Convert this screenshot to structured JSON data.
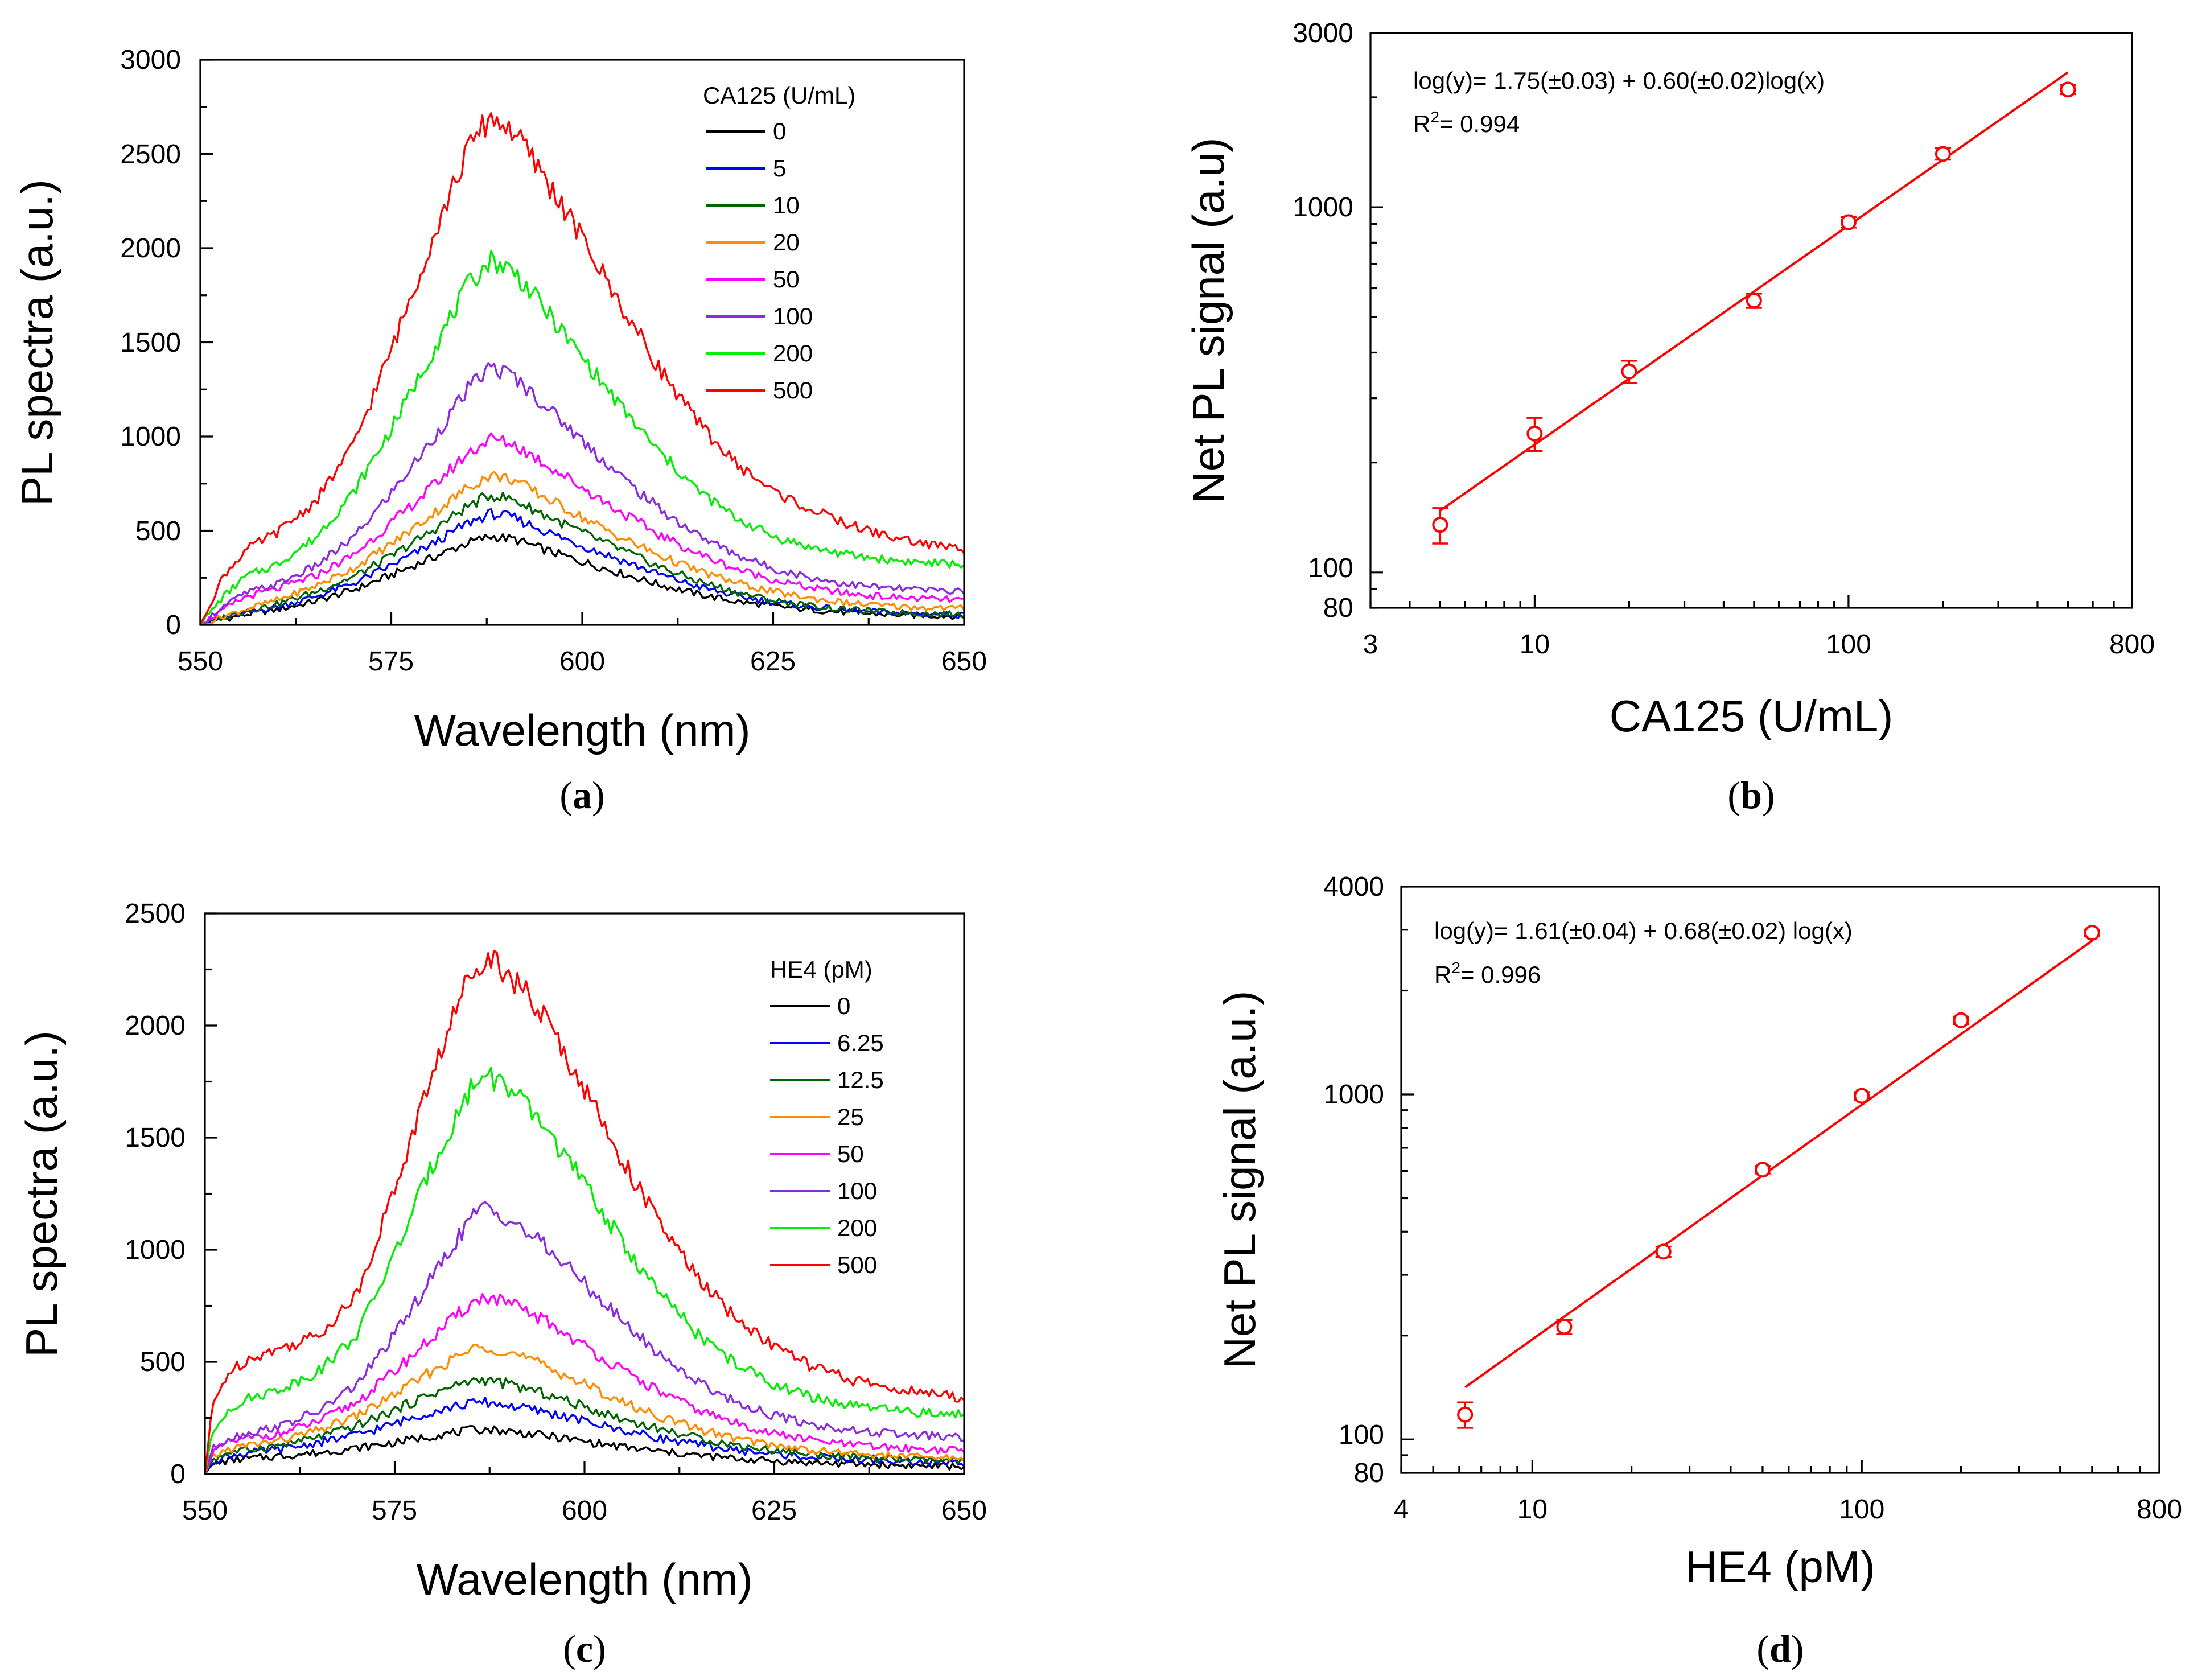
{
  "chart_data": [
    {
      "id": "a",
      "panel_label": "a",
      "type": "line",
      "xlabel": "Wavelength (nm)",
      "ylabel": "PL spectra (a.u.)",
      "xlim": [
        550,
        650
      ],
      "ylim": [
        0,
        3000
      ],
      "xticks": [
        "550",
        "575",
        "600",
        "625",
        "650"
      ],
      "yticks": [
        "0",
        "500",
        "1000",
        "1500",
        "2000",
        "2500",
        "3000"
      ],
      "legend_title": "CA125 (U/mL)",
      "x": [
        550,
        553,
        556,
        560,
        565,
        570,
        575,
        580,
        585,
        588,
        591,
        595,
        600,
        605,
        610,
        615,
        620,
        625,
        630,
        635,
        640,
        645,
        650
      ],
      "series": [
        {
          "name": "0",
          "color": "#000000",
          "values": [
            0,
            30,
            55,
            80,
            125,
            185,
            265,
            350,
            435,
            470,
            455,
            400,
            335,
            275,
            215,
            165,
            125,
            100,
            80,
            65,
            55,
            50,
            45
          ]
        },
        {
          "name": "5",
          "color": "#0000ff",
          "values": [
            0,
            35,
            65,
            95,
            150,
            220,
            315,
            420,
            540,
            590,
            570,
            500,
            420,
            345,
            270,
            205,
            155,
            120,
            95,
            75,
            65,
            58,
            52
          ]
        },
        {
          "name": "10",
          "color": "#006400",
          "values": [
            0,
            40,
            75,
            110,
            175,
            255,
            365,
            490,
            630,
            690,
            665,
            585,
            490,
            400,
            310,
            235,
            175,
            130,
            100,
            80,
            68,
            60,
            55
          ]
        },
        {
          "name": "20",
          "color": "#ff8c00",
          "values": [
            0,
            45,
            85,
            130,
            205,
            300,
            430,
            575,
            730,
            795,
            770,
            680,
            570,
            465,
            370,
            290,
            225,
            175,
            140,
            115,
            100,
            92,
            88
          ]
        },
        {
          "name": "50",
          "color": "#ff00ff",
          "values": [
            0,
            80,
            150,
            190,
            260,
            370,
            540,
            720,
            910,
            990,
            960,
            860,
            730,
            600,
            480,
            380,
            300,
            240,
            195,
            165,
            148,
            138,
            132
          ]
        },
        {
          "name": "100",
          "color": "#8a2be2",
          "values": [
            0,
            100,
            170,
            215,
            310,
            460,
            700,
            960,
            1250,
            1370,
            1320,
            1170,
            980,
            790,
            620,
            480,
            375,
            300,
            250,
            215,
            195,
            185,
            180
          ]
        },
        {
          "name": "200",
          "color": "#00ee00",
          "values": [
            0,
            150,
            260,
            320,
            460,
            700,
            1040,
            1420,
            1800,
            1940,
            1880,
            1680,
            1420,
            1160,
            920,
            720,
            570,
            470,
            410,
            370,
            345,
            330,
            320
          ]
        },
        {
          "name": "500",
          "color": "#ff0000",
          "values": [
            0,
            260,
            400,
            490,
            650,
            950,
            1460,
            2010,
            2520,
            2700,
            2620,
            2380,
            2050,
            1700,
            1370,
            1080,
            860,
            710,
            610,
            530,
            470,
            430,
            400
          ]
        }
      ]
    },
    {
      "id": "b",
      "panel_label": "b",
      "type": "scatter",
      "xlabel": "CA125 (U/mL)",
      "ylabel": "Net PL signal (a.u)",
      "xscale": "log",
      "yscale": "log",
      "xlim": [
        3,
        800
      ],
      "ylim": [
        80,
        3000
      ],
      "xticks": [
        3,
        10,
        100,
        800
      ],
      "yticks": [
        80,
        100,
        1000,
        3000
      ],
      "xtick_labels": [
        "3",
        "10",
        "100",
        "800"
      ],
      "ytick_labels": [
        "80",
        "100",
        "1000",
        "3000"
      ],
      "equation": "log(y)= 1.75(±0.03) + 0.60(±0.02)log(x)",
      "r2_prefix": "R",
      "r2_sup": "2",
      "r2_value": "= 0.994",
      "color": "#ff0000",
      "fit": {
        "intercept": 1.75,
        "slope": 0.6,
        "x_from": 5,
        "x_to": 500
      },
      "points": [
        {
          "x": 5,
          "y": 135,
          "err": 15
        },
        {
          "x": 10,
          "y": 240,
          "err": 25
        },
        {
          "x": 20,
          "y": 355,
          "err": 25
        },
        {
          "x": 50,
          "y": 555,
          "err": 25
        },
        {
          "x": 100,
          "y": 910,
          "err": 30
        },
        {
          "x": 200,
          "y": 1400,
          "err": 50
        },
        {
          "x": 500,
          "y": 2100,
          "err": 60
        }
      ]
    },
    {
      "id": "c",
      "panel_label": "c",
      "type": "line",
      "xlabel": "Wavelength (nm)",
      "ylabel": "PL spectra (a.u.)",
      "xlim": [
        550,
        650
      ],
      "ylim": [
        0,
        2500
      ],
      "xticks": [
        "550",
        "575",
        "600",
        "625",
        "650"
      ],
      "yticks": [
        "0",
        "500",
        "1000",
        "1500",
        "2000",
        "2500"
      ],
      "legend_title": "HE4 (pM)",
      "x": [
        550,
        551,
        553,
        556,
        560,
        565,
        570,
        575,
        580,
        585,
        587,
        590,
        595,
        600,
        605,
        610,
        615,
        620,
        625,
        630,
        635,
        640,
        645,
        650
      ],
      "series": [
        {
          "name": "0",
          "color": "#000000",
          "values": [
            0,
            40,
            60,
            70,
            80,
            95,
            115,
            140,
            170,
            195,
            200,
            190,
            170,
            145,
            120,
            100,
            82,
            68,
            58,
            50,
            45,
            40,
            36,
            33
          ]
        },
        {
          "name": "6.25",
          "color": "#0000ff",
          "values": [
            0,
            55,
            80,
            95,
            110,
            140,
            175,
            225,
            280,
            315,
            320,
            305,
            275,
            235,
            195,
            160,
            130,
            105,
            88,
            75,
            65,
            58,
            52,
            48
          ]
        },
        {
          "name": "12.5",
          "color": "#006400",
          "values": [
            0,
            65,
            95,
            110,
            130,
            165,
            215,
            285,
            360,
            415,
            420,
            400,
            355,
            300,
            245,
            200,
            160,
            128,
            105,
            88,
            76,
            67,
            60,
            55
          ]
        },
        {
          "name": "25",
          "color": "#ff8c00",
          "values": [
            0,
            75,
            110,
            130,
            150,
            195,
            260,
            355,
            460,
            555,
            570,
            545,
            480,
            400,
            320,
            255,
            200,
            158,
            128,
            106,
            92,
            82,
            75,
            70
          ]
        },
        {
          "name": "50",
          "color": "#ff00ff",
          "values": [
            0,
            95,
            140,
            160,
            180,
            235,
            320,
            460,
            610,
            760,
            790,
            760,
            680,
            570,
            460,
            365,
            285,
            225,
            180,
            150,
            130,
            118,
            110,
            105
          ]
        },
        {
          "name": "100",
          "color": "#8a2be2",
          "values": [
            0,
            110,
            160,
            185,
            215,
            280,
            400,
            620,
            880,
            1140,
            1190,
            1140,
            1010,
            850,
            680,
            530,
            410,
            320,
            260,
            220,
            195,
            180,
            170,
            160
          ]
        },
        {
          "name": "200",
          "color": "#00ee00",
          "values": [
            0,
            180,
            290,
            340,
            380,
            460,
            620,
            980,
            1380,
            1720,
            1790,
            1720,
            1540,
            1290,
            1030,
            800,
            620,
            490,
            400,
            340,
            305,
            285,
            272,
            265
          ]
        },
        {
          "name": "500",
          "color": "#ff0000",
          "values": [
            0,
            300,
            450,
            520,
            560,
            620,
            800,
            1270,
            1790,
            2240,
            2320,
            2240,
            2020,
            1720,
            1400,
            1110,
            870,
            690,
            570,
            480,
            420,
            385,
            360,
            340
          ]
        }
      ]
    },
    {
      "id": "d",
      "panel_label": "d",
      "type": "scatter",
      "xlabel": "HE4 (pM)",
      "ylabel": "Net PL signal (a.u.)",
      "xscale": "log",
      "yscale": "log",
      "xlim": [
        4,
        800
      ],
      "ylim": [
        80,
        4000
      ],
      "xticks": [
        4,
        10,
        100,
        800
      ],
      "yticks": [
        80,
        100,
        1000,
        4000
      ],
      "xtick_labels": [
        "4",
        "10",
        "100",
        "800"
      ],
      "ytick_labels": [
        "80",
        "100",
        "1000",
        "4000"
      ],
      "equation": "log(y)= 1.61(±0.04) + 0.68(±0.02) log(x)",
      "r2_prefix": "R",
      "r2_sup": "2",
      "r2_value": "= 0.996",
      "color": "#ff0000",
      "fit": {
        "intercept": 1.61,
        "slope": 0.68,
        "x_from": 6.25,
        "x_to": 500
      },
      "points": [
        {
          "x": 6.25,
          "y": 118,
          "err": 10
        },
        {
          "x": 12.5,
          "y": 212,
          "err": 10
        },
        {
          "x": 25,
          "y": 350,
          "err": 12
        },
        {
          "x": 50,
          "y": 605,
          "err": 15
        },
        {
          "x": 100,
          "y": 990,
          "err": 25
        },
        {
          "x": 200,
          "y": 1640,
          "err": 40
        },
        {
          "x": 500,
          "y": 2940,
          "err": 60
        }
      ]
    }
  ]
}
